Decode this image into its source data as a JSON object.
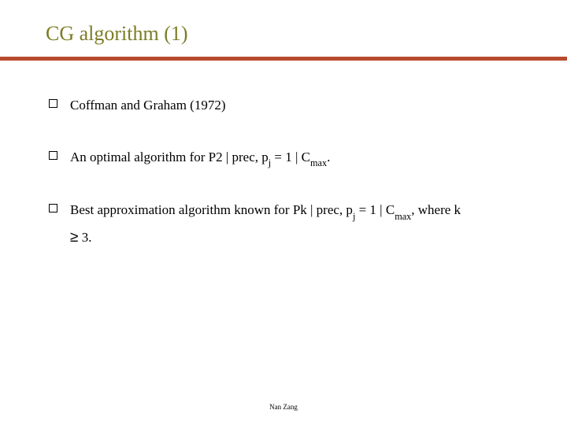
{
  "title": {
    "text": "CG algorithm (1)",
    "color": "#7c7c26",
    "fontsize": 26
  },
  "rule": {
    "color": "#b84b2e",
    "height": 5
  },
  "bullets": [
    {
      "parts": [
        {
          "t": "Coffman and Graham (1972)"
        }
      ]
    },
    {
      "parts": [
        {
          "t": "An optimal algorithm for P2 | prec, p"
        },
        {
          "t": "j",
          "sub": true
        },
        {
          "t": " = 1 | C"
        },
        {
          "t": "max",
          "sub": true
        },
        {
          "t": "."
        }
      ]
    },
    {
      "parts": [
        {
          "t": "Best approximation algorithm known for Pk | prec, p"
        },
        {
          "t": "j",
          "sub": true
        },
        {
          "t": " = 1 | C"
        },
        {
          "t": "max",
          "sub": true
        },
        {
          "t": ", where k"
        }
      ],
      "cont": [
        {
          "t": "≥",
          "geq": true
        },
        {
          "t": " 3."
        }
      ]
    }
  ],
  "body": {
    "fontsize": 17,
    "bullet_border": "#000000",
    "text_color": "#000000"
  },
  "footer": {
    "text": "Nan Zang",
    "fontsize": 9
  },
  "background": "#ffffff"
}
